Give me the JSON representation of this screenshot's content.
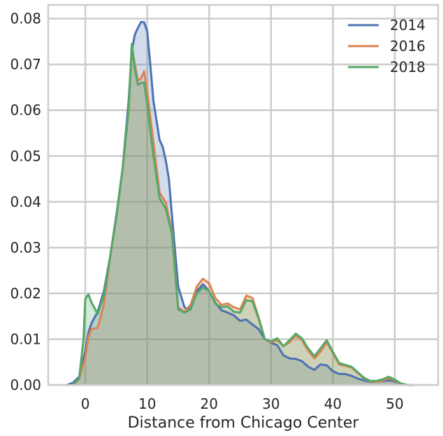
{
  "chart_data": {
    "type": "area",
    "xlabel": "Distance from Chicago Center",
    "ylabel": "",
    "xlim": [
      -6,
      57
    ],
    "ylim": [
      0,
      0.083
    ],
    "x_ticks": [
      0,
      10,
      20,
      30,
      40,
      50
    ],
    "y_ticks": [
      0.0,
      0.01,
      0.02,
      0.03,
      0.04,
      0.05,
      0.06,
      0.07,
      0.08
    ],
    "y_tick_labels": [
      "0.00",
      "0.01",
      "0.02",
      "0.03",
      "0.04",
      "0.05",
      "0.06",
      "0.07",
      "0.08"
    ],
    "grid": true,
    "legend_position": "top-right",
    "series": [
      {
        "name": "2014",
        "color": "#4c72b0",
        "points": [
          [
            -3,
            0
          ],
          [
            -2,
            0.0005
          ],
          [
            -1,
            0.0018
          ],
          [
            0,
            0.0075
          ],
          [
            0.5,
            0.0115
          ],
          [
            1,
            0.0135
          ],
          [
            2,
            0.016
          ],
          [
            3,
            0.0205
          ],
          [
            4,
            0.028
          ],
          [
            5,
            0.037
          ],
          [
            6,
            0.047
          ],
          [
            7,
            0.062
          ],
          [
            7.5,
            0.073
          ],
          [
            8,
            0.0765
          ],
          [
            8.5,
            0.078
          ],
          [
            9,
            0.0793
          ],
          [
            9.5,
            0.0792
          ],
          [
            10,
            0.0772
          ],
          [
            10.5,
            0.07
          ],
          [
            11,
            0.062
          ],
          [
            12,
            0.0535
          ],
          [
            12.5,
            0.052
          ],
          [
            13,
            0.049
          ],
          [
            13.5,
            0.045
          ],
          [
            14,
            0.037
          ],
          [
            15,
            0.0215
          ],
          [
            16,
            0.017
          ],
          [
            16.5,
            0.0165
          ],
          [
            17,
            0.017
          ],
          [
            18,
            0.0205
          ],
          [
            19,
            0.022
          ],
          [
            20,
            0.0205
          ],
          [
            21,
            0.018
          ],
          [
            22,
            0.0163
          ],
          [
            23,
            0.0158
          ],
          [
            24,
            0.0152
          ],
          [
            25,
            0.014
          ],
          [
            26,
            0.0143
          ],
          [
            27,
            0.0132
          ],
          [
            28,
            0.0122
          ],
          [
            29,
            0.01
          ],
          [
            30,
            0.0092
          ],
          [
            31,
            0.0087
          ],
          [
            32,
            0.0065
          ],
          [
            33,
            0.0058
          ],
          [
            34,
            0.0057
          ],
          [
            35,
            0.0052
          ],
          [
            36,
            0.004
          ],
          [
            37,
            0.0033
          ],
          [
            38,
            0.0045
          ],
          [
            39,
            0.0043
          ],
          [
            40,
            0.003
          ],
          [
            41,
            0.0024
          ],
          [
            42,
            0.0024
          ],
          [
            43,
            0.002
          ],
          [
            44,
            0.0014
          ],
          [
            45,
            0.001
          ],
          [
            46,
            0.0007
          ],
          [
            47,
            0.0007
          ],
          [
            48,
            0.0008
          ],
          [
            49,
            0.001
          ],
          [
            50,
            0.0008
          ],
          [
            51,
            0.0003
          ],
          [
            52,
            0
          ],
          [
            53,
            0
          ]
        ]
      },
      {
        "name": "2016",
        "color": "#dd8452",
        "points": [
          [
            -2,
            0
          ],
          [
            -1,
            0.0013
          ],
          [
            0,
            0.006
          ],
          [
            0.5,
            0.0105
          ],
          [
            1,
            0.0122
          ],
          [
            2,
            0.0125
          ],
          [
            3,
            0.0175
          ],
          [
            4,
            0.028
          ],
          [
            5,
            0.0365
          ],
          [
            6,
            0.047
          ],
          [
            7,
            0.06
          ],
          [
            7.5,
            0.074
          ],
          [
            8,
            0.07
          ],
          [
            8.5,
            0.0665
          ],
          [
            9,
            0.067
          ],
          [
            9.5,
            0.0685
          ],
          [
            10,
            0.064
          ],
          [
            11,
            0.053
          ],
          [
            12,
            0.042
          ],
          [
            13,
            0.0398
          ],
          [
            14,
            0.0335
          ],
          [
            15,
            0.017
          ],
          [
            16,
            0.016
          ],
          [
            17,
            0.0175
          ],
          [
            18,
            0.0215
          ],
          [
            19,
            0.0232
          ],
          [
            20,
            0.0222
          ],
          [
            21,
            0.019
          ],
          [
            22,
            0.0175
          ],
          [
            23,
            0.0178
          ],
          [
            24,
            0.017
          ],
          [
            25,
            0.0165
          ],
          [
            26,
            0.0195
          ],
          [
            27,
            0.019
          ],
          [
            28,
            0.0148
          ],
          [
            29,
            0.01
          ],
          [
            30,
            0.0093
          ],
          [
            31,
            0.0098
          ],
          [
            32,
            0.0085
          ],
          [
            33,
            0.0093
          ],
          [
            34,
            0.0108
          ],
          [
            35,
            0.0098
          ],
          [
            36,
            0.0075
          ],
          [
            37,
            0.0058
          ],
          [
            38,
            0.0073
          ],
          [
            39,
            0.0093
          ],
          [
            40,
            0.007
          ],
          [
            41,
            0.0045
          ],
          [
            42,
            0.0042
          ],
          [
            43,
            0.0038
          ],
          [
            44,
            0.0026
          ],
          [
            45,
            0.0015
          ],
          [
            46,
            0.0008
          ],
          [
            47,
            0.0007
          ],
          [
            48,
            0.0009
          ],
          [
            49,
            0.0015
          ],
          [
            50,
            0.001
          ],
          [
            51,
            0.0003
          ],
          [
            52,
            0
          ]
        ]
      },
      {
        "name": "2018",
        "color": "#55a868",
        "points": [
          [
            -2,
            0
          ],
          [
            -1,
            0.0015
          ],
          [
            -0.3,
            0.01
          ],
          [
            0,
            0.0188
          ],
          [
            0.5,
            0.0198
          ],
          [
            1,
            0.018
          ],
          [
            2,
            0.0155
          ],
          [
            3,
            0.0195
          ],
          [
            4,
            0.028
          ],
          [
            5,
            0.0365
          ],
          [
            6,
            0.047
          ],
          [
            7,
            0.06
          ],
          [
            7.5,
            0.0745
          ],
          [
            8,
            0.069
          ],
          [
            8.5,
            0.0655
          ],
          [
            9,
            0.066
          ],
          [
            9.5,
            0.066
          ],
          [
            10,
            0.0612
          ],
          [
            11,
            0.05
          ],
          [
            12,
            0.0408
          ],
          [
            13,
            0.0385
          ],
          [
            14,
            0.033
          ],
          [
            15,
            0.0165
          ],
          [
            16,
            0.0158
          ],
          [
            17,
            0.0165
          ],
          [
            18,
            0.02
          ],
          [
            19,
            0.0213
          ],
          [
            20,
            0.0205
          ],
          [
            21,
            0.0178
          ],
          [
            22,
            0.017
          ],
          [
            23,
            0.0172
          ],
          [
            24,
            0.016
          ],
          [
            25,
            0.0158
          ],
          [
            26,
            0.0185
          ],
          [
            27,
            0.0183
          ],
          [
            28,
            0.0145
          ],
          [
            29,
            0.01
          ],
          [
            30,
            0.0095
          ],
          [
            31,
            0.0102
          ],
          [
            32,
            0.0085
          ],
          [
            33,
            0.0098
          ],
          [
            34,
            0.0112
          ],
          [
            35,
            0.0102
          ],
          [
            36,
            0.008
          ],
          [
            37,
            0.0063
          ],
          [
            38,
            0.008
          ],
          [
            39,
            0.0098
          ],
          [
            40,
            0.0072
          ],
          [
            41,
            0.0048
          ],
          [
            42,
            0.0044
          ],
          [
            43,
            0.004
          ],
          [
            44,
            0.0028
          ],
          [
            45,
            0.0016
          ],
          [
            46,
            0.0009
          ],
          [
            47,
            0.0009
          ],
          [
            48,
            0.0012
          ],
          [
            49,
            0.0018
          ],
          [
            50,
            0.0012
          ],
          [
            51,
            0.0003
          ],
          [
            52,
            0
          ]
        ]
      }
    ]
  }
}
